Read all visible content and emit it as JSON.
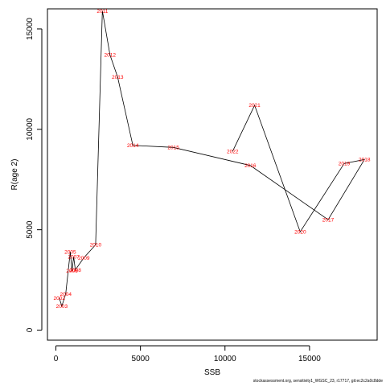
{
  "chart_data": {
    "type": "line",
    "xlabel": "SSB",
    "ylabel": "R(age 2)",
    "xlim": [
      -500,
      19000
    ],
    "ylim": [
      -500,
      16000
    ],
    "xticks": [
      0,
      5000,
      10000,
      15000
    ],
    "yticks": [
      0,
      5000,
      10000,
      15000
    ],
    "line_color": "#000000",
    "label_color": "#ff0000",
    "points": [
      {
        "year": "2002",
        "x": 200,
        "y": 1600
      },
      {
        "year": "2003",
        "x": 350,
        "y": 1200
      },
      {
        "year": "2004",
        "x": 580,
        "y": 1800
      },
      {
        "year": "2005",
        "x": 850,
        "y": 3900
      },
      {
        "year": "2006",
        "x": 950,
        "y": 2950
      },
      {
        "year": "2007",
        "x": 1050,
        "y": 3650
      },
      {
        "year": "2008",
        "x": 1150,
        "y": 3000
      },
      {
        "year": "2009",
        "x": 1650,
        "y": 3600
      },
      {
        "year": "2010",
        "x": 2350,
        "y": 4250
      },
      {
        "year": "2011",
        "x": 2750,
        "y": 15900
      },
      {
        "year": "2012",
        "x": 3200,
        "y": 13700
      },
      {
        "year": "2013",
        "x": 3650,
        "y": 12600
      },
      {
        "year": "2014",
        "x": 4550,
        "y": 9200
      },
      {
        "year": "2015",
        "x": 6950,
        "y": 9100
      },
      {
        "year": "2016",
        "x": 11500,
        "y": 8200
      },
      {
        "year": "2017",
        "x": 16100,
        "y": 5500
      },
      {
        "year": "2018",
        "x": 18250,
        "y": 8500
      },
      {
        "year": "2019",
        "x": 17050,
        "y": 8300
      },
      {
        "year": "2020",
        "x": 14450,
        "y": 4900
      },
      {
        "year": "2021",
        "x": 11750,
        "y": 11200
      },
      {
        "year": "2022",
        "x": 10450,
        "y": 8900
      }
    ]
  },
  "footer_text": "stockassessment.org, sensitivity1_WGSC_23, r17717, git:ec2c2a0c8dde"
}
